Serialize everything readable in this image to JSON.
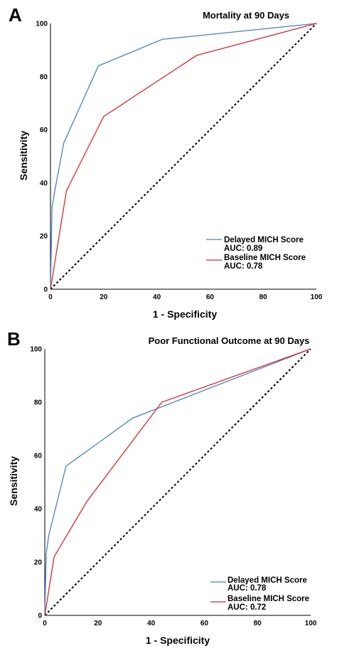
{
  "chart_data": [
    {
      "type": "line",
      "panel": "A",
      "title": "Mortality at 90 Days",
      "xlabel": "1 - Specificity",
      "ylabel": "Sensitivity",
      "xlim": [
        0,
        100
      ],
      "ylim": [
        0,
        100
      ],
      "xticks": [
        "0",
        "20",
        "40",
        "60",
        "80",
        "100"
      ],
      "yticks": [
        "0",
        "20",
        "40",
        "60",
        "80",
        "100"
      ],
      "grid": false,
      "legend_position": "bottom-right",
      "series": [
        {
          "name": "Delayed MICH Score",
          "auc": "AUC: 0.89",
          "color": "#4a7ec8",
          "points": [
            [
              0,
              0
            ],
            [
              0.6,
              31
            ],
            [
              1.8,
              38
            ],
            [
              5,
              55
            ],
            [
              18,
              84
            ],
            [
              42,
              94
            ],
            [
              100,
              100
            ]
          ]
        },
        {
          "name": "Baseline MICH Score",
          "auc": "AUC: 0.78",
          "color": "#d42a2a",
          "points": [
            [
              0,
              0
            ],
            [
              6,
              37
            ],
            [
              20,
              65
            ],
            [
              55,
              88
            ],
            [
              100,
              100
            ]
          ]
        }
      ],
      "reference_line": [
        [
          0,
          0
        ],
        [
          100,
          100
        ]
      ]
    },
    {
      "type": "line",
      "panel": "B",
      "title": "Poor Functional Outcome at 90 Days",
      "xlabel": "1 - Specificity",
      "ylabel": "Sensitivity",
      "xlim": [
        0,
        100
      ],
      "ylim": [
        0,
        100
      ],
      "xticks": [
        "0",
        "20",
        "40",
        "60",
        "80",
        "100"
      ],
      "yticks": [
        "0",
        "20",
        "40",
        "60",
        "80",
        "100"
      ],
      "grid": false,
      "legend_position": "bottom-right",
      "series": [
        {
          "name": "Delayed MICH Score",
          "auc": "AUC: 0.78",
          "color": "#4a7ec8",
          "points": [
            [
              0,
              0
            ],
            [
              0.5,
              23
            ],
            [
              1.5,
              30
            ],
            [
              8,
              56
            ],
            [
              33,
              74
            ],
            [
              100,
              100
            ]
          ]
        },
        {
          "name": "Baseline MICH Score",
          "auc": "AUC: 0.72",
          "color": "#d42a2a",
          "points": [
            [
              0,
              0
            ],
            [
              3.5,
              22
            ],
            [
              16,
              43
            ],
            [
              44,
              80
            ],
            [
              100,
              100
            ]
          ]
        }
      ],
      "reference_line": [
        [
          0,
          0
        ],
        [
          100,
          100
        ]
      ]
    }
  ]
}
